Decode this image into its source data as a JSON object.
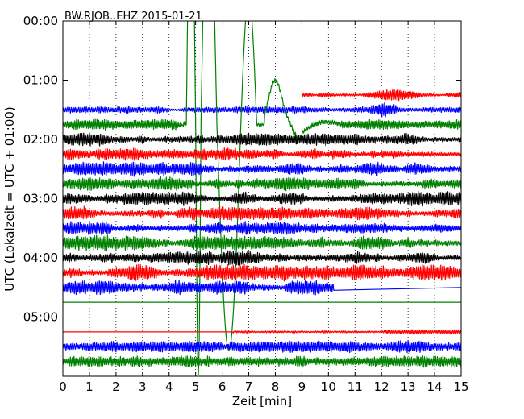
{
  "chart_data": {
    "type": "line",
    "title": "BW.RJOB..EHZ 2015-01-21",
    "xlabel": "Zeit  [min]",
    "ylabel": "UTC (Lokalzeit = UTC + 01:00)",
    "xlim": [
      0,
      15
    ],
    "ylim": [
      0,
      6.0
    ],
    "x_ticks": [
      "0",
      "1",
      "2",
      "3",
      "4",
      "5",
      "6",
      "7",
      "8",
      "9",
      "10",
      "11",
      "12",
      "13",
      "14",
      "15"
    ],
    "y_ticks": [
      "00:00",
      "01:00",
      "02:00",
      "03:00",
      "04:00",
      "05:00"
    ],
    "grid": "vertical dotted",
    "color_cycle": [
      "#ff0000",
      "#0000ff",
      "#008000",
      "#000000"
    ],
    "traces": [
      {
        "hour": 1.25,
        "color": "#ff0000",
        "start_min": 9.0,
        "noise": 0.22,
        "burst": [
          12.5,
          0.6
        ]
      },
      {
        "hour": 1.5,
        "color": "#0000ff",
        "noise": 0.3,
        "burst": [
          12.2,
          0.6
        ]
      },
      {
        "hour": 1.75,
        "color": "#008000",
        "noise": 0.45,
        "quake": true
      },
      {
        "hour": 2.0,
        "color": "#000000",
        "noise": 0.55
      },
      {
        "hour": 2.25,
        "color": "#ff0000",
        "noise": 0.55
      },
      {
        "hour": 2.5,
        "color": "#0000ff",
        "noise": 0.6
      },
      {
        "hour": 2.75,
        "color": "#008000",
        "noise": 0.6
      },
      {
        "hour": 3.0,
        "color": "#000000",
        "noise": 0.65
      },
      {
        "hour": 3.25,
        "color": "#ff0000",
        "noise": 0.6
      },
      {
        "hour": 3.5,
        "color": "#0000ff",
        "noise": 0.6
      },
      {
        "hour": 3.75,
        "color": "#008000",
        "noise": 0.65
      },
      {
        "hour": 4.0,
        "color": "#000000",
        "noise": 0.65
      },
      {
        "hour": 4.25,
        "color": "#ff0000",
        "noise": 0.7
      },
      {
        "hour": 4.5,
        "color": "#0000ff",
        "noise": 0.6,
        "end_min": 10.2
      },
      {
        "hour": 4.75,
        "color": "#008000",
        "noise": 0.0
      },
      {
        "hour": 5.25,
        "color": "#ff0000",
        "noise": 0.2,
        "quiet_until": 6.4
      },
      {
        "hour": 5.5,
        "color": "#0000ff",
        "noise": 0.5
      },
      {
        "hour": 5.75,
        "color": "#008000",
        "noise": 0.5
      }
    ]
  }
}
